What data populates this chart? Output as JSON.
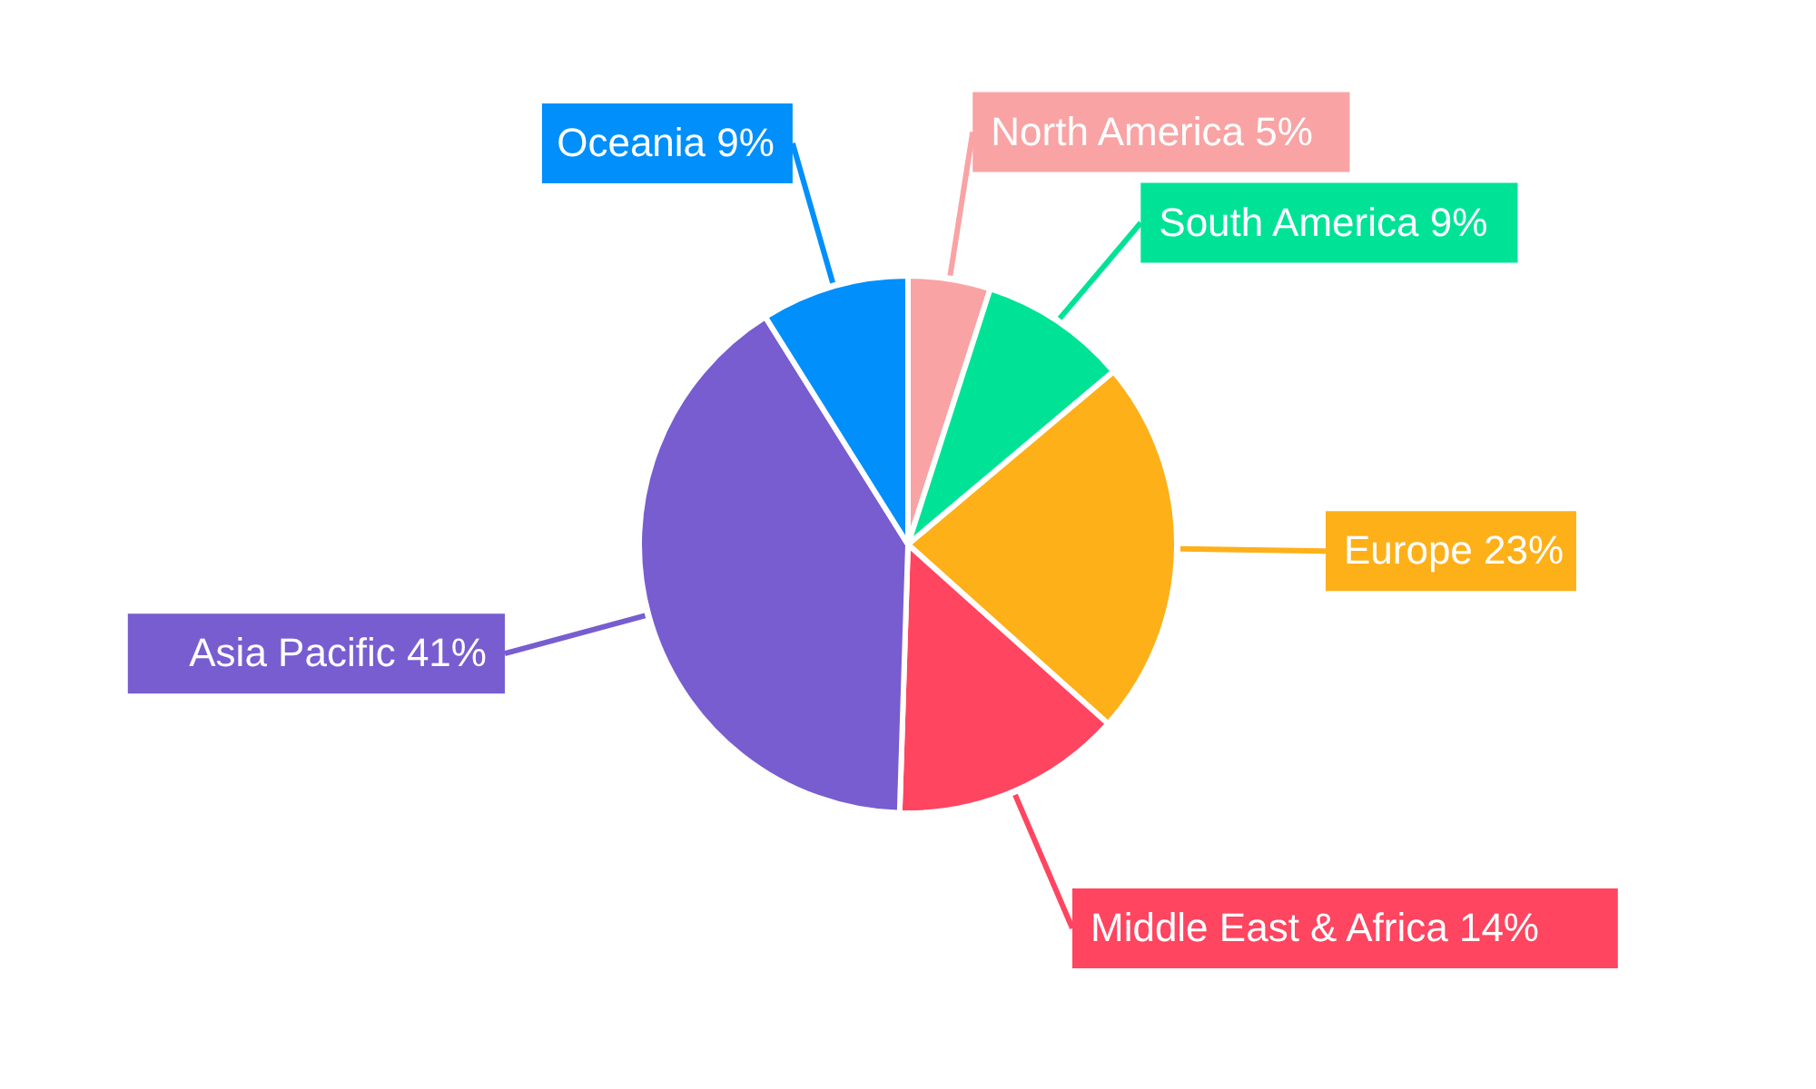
{
  "chart_data": {
    "type": "pie",
    "categories": [
      "North America",
      "South America",
      "Europe",
      "Middle East & Africa",
      "Asia Pacific",
      "Oceania"
    ],
    "values": [
      5,
      9,
      23,
      14,
      41,
      9
    ],
    "value_labels": [
      "5%",
      "9%",
      "23%",
      "14%",
      "41%",
      "9%"
    ],
    "colors": [
      "#f9a3a4",
      "#00e396",
      "#feb019",
      "#ff4560",
      "#775dd0",
      "#008ffb"
    ]
  }
}
